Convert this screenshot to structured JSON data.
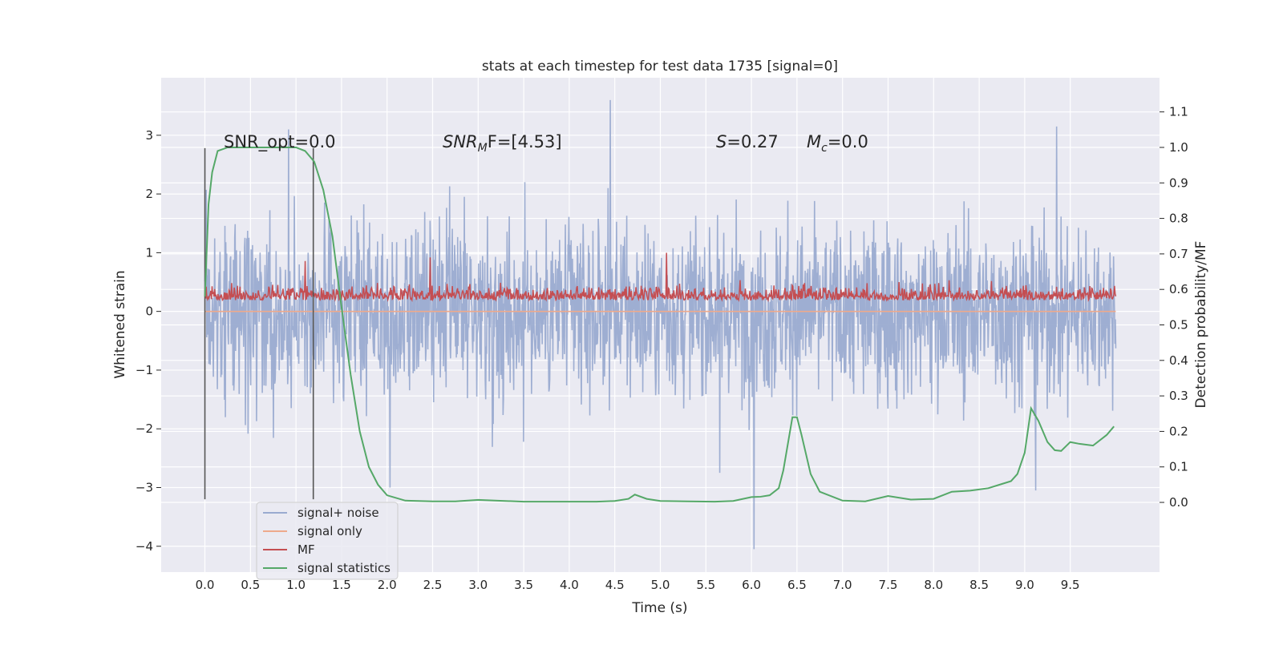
{
  "chart_data": {
    "type": "line",
    "title": "stats at each timestep for test data 1735 [signal=0]",
    "xlabel": "Time (s)",
    "ylabel": "Whitened strain",
    "y2label": "Detection probability/MF",
    "xlim": [
      -0.48,
      10.48
    ],
    "ylim": [
      -4.44,
      3.98
    ],
    "y2lim": [
      -0.1963,
      1.1963
    ],
    "x_ticks": [
      0.0,
      0.5,
      1.0,
      1.5,
      2.0,
      2.5,
      3.0,
      3.5,
      4.0,
      4.5,
      5.0,
      5.5,
      6.0,
      6.5,
      7.0,
      7.5,
      8.0,
      8.5,
      9.0,
      9.5
    ],
    "x_tick_labels": [
      "0.0",
      "0.5",
      "1.0",
      "1.5",
      "2.0",
      "2.5",
      "3.0",
      "3.5",
      "4.0",
      "4.5",
      "5.0",
      "5.5",
      "6.0",
      "6.5",
      "7.0",
      "7.5",
      "8.0",
      "8.5",
      "9.0",
      "9.5"
    ],
    "y_ticks": [
      -4,
      -3,
      -2,
      -1,
      0,
      1,
      2,
      3
    ],
    "y_tick_labels": [
      "−4",
      "−3",
      "−2",
      "−1",
      "0",
      "1",
      "2",
      "3"
    ],
    "y2_ticks": [
      0.0,
      0.1,
      0.2,
      0.3,
      0.4,
      0.5,
      0.6,
      0.7,
      0.8,
      0.9,
      1.0,
      1.1
    ],
    "y2_tick_labels": [
      "0.0",
      "0.1",
      "0.2",
      "0.3",
      "0.4",
      "0.5",
      "0.6",
      "0.7",
      "0.8",
      "0.9",
      "1.0",
      "1.1"
    ],
    "grid": true,
    "legend_position": "lower-left",
    "annotations": {
      "snr_opt": "SNR_opt=0.0",
      "snr_mf_prefix": "SNR",
      "snr_mf_sub": "M",
      "snr_mf_suffix": "F=[4.53]",
      "s_var": "S",
      "s_value": "=0.27",
      "mc_var": "M",
      "mc_sub": "c",
      "mc_value": "=0.0"
    },
    "vertical_markers": [
      0.0,
      1.19
    ],
    "series": [
      {
        "name": "signal+ noise",
        "color": "#9aabd0",
        "axis": "left",
        "duration": 10.0,
        "samples": 2048,
        "approx_envelope": [
          -2.0,
          2.2
        ],
        "extremes": [
          [
            4.45,
            3.6
          ],
          [
            6.03,
            -4.05
          ],
          [
            0.92,
            3.1
          ],
          [
            9.35,
            3.15
          ],
          [
            9.12,
            -3.05
          ],
          [
            2.03,
            -3.0
          ],
          [
            5.65,
            -2.75
          ]
        ]
      },
      {
        "name": "signal only",
        "color": "#eea98c",
        "axis": "left",
        "x": [
          0.0,
          10.0
        ],
        "y": [
          0.0,
          0.0
        ]
      },
      {
        "name": "MF",
        "color": "#c44e52",
        "axis": "right",
        "duration": 10.0,
        "samples": 1400,
        "baseline": 0.59,
        "approx_range": [
          0.55,
          0.72
        ],
        "peaks": [
          [
            5.07,
            0.703
          ],
          [
            2.47,
            0.69
          ],
          [
            1.1,
            0.68
          ]
        ]
      },
      {
        "name": "signal statistics",
        "color": "#55a868",
        "axis": "right",
        "x": [
          0.0,
          0.04,
          0.08,
          0.14,
          0.25,
          0.5,
          0.8,
          1.0,
          1.1,
          1.2,
          1.3,
          1.4,
          1.5,
          1.6,
          1.7,
          1.8,
          1.9,
          2.0,
          2.2,
          2.5,
          2.75,
          3.0,
          3.5,
          4.0,
          4.3,
          4.5,
          4.65,
          4.72,
          4.85,
          5.0,
          5.3,
          5.6,
          5.8,
          6.0,
          6.1,
          6.2,
          6.3,
          6.35,
          6.45,
          6.5,
          6.55,
          6.65,
          6.75,
          7.0,
          7.25,
          7.5,
          7.75,
          8.0,
          8.2,
          8.4,
          8.6,
          8.75,
          8.85,
          8.92,
          9.0,
          9.07,
          9.15,
          9.25,
          9.33,
          9.4,
          9.5,
          9.6,
          9.75,
          9.9,
          9.98
        ],
        "y": [
          0.58,
          0.84,
          0.93,
          0.99,
          1.0,
          1.0,
          1.0,
          1.0,
          0.99,
          0.96,
          0.88,
          0.75,
          0.55,
          0.36,
          0.2,
          0.1,
          0.05,
          0.02,
          0.005,
          0.003,
          0.003,
          0.007,
          0.002,
          0.002,
          0.002,
          0.004,
          0.01,
          0.022,
          0.01,
          0.004,
          0.003,
          0.002,
          0.004,
          0.015,
          0.016,
          0.02,
          0.04,
          0.09,
          0.24,
          0.24,
          0.19,
          0.08,
          0.03,
          0.005,
          0.003,
          0.018,
          0.008,
          0.01,
          0.03,
          0.033,
          0.04,
          0.052,
          0.06,
          0.08,
          0.14,
          0.265,
          0.23,
          0.17,
          0.147,
          0.145,
          0.17,
          0.165,
          0.16,
          0.19,
          0.214
        ]
      }
    ]
  }
}
